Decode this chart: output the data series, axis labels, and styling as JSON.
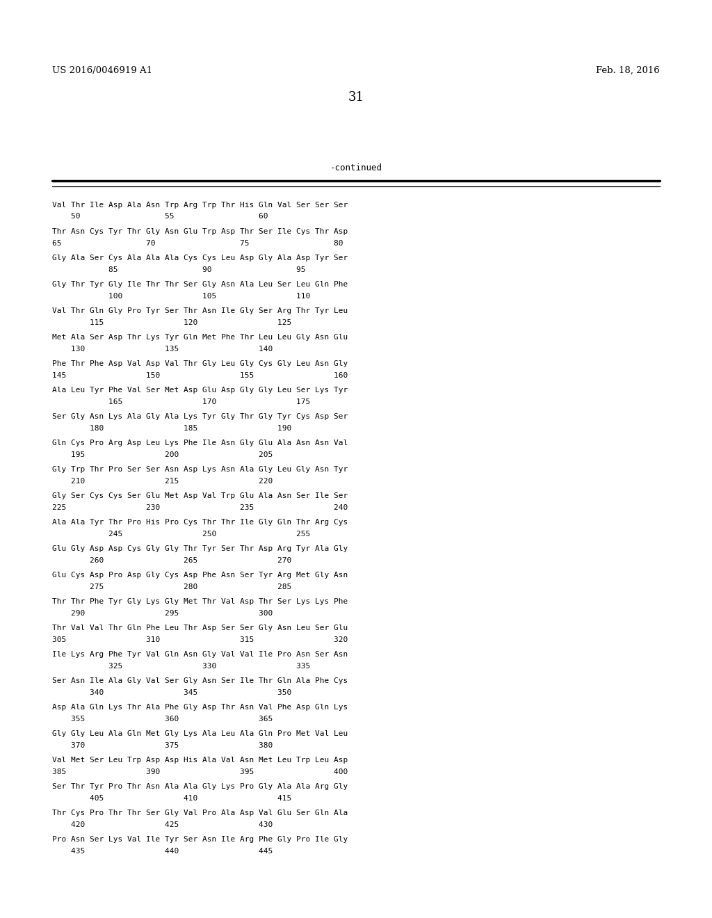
{
  "header_left": "US 2016/0046919 A1",
  "header_right": "Feb. 18, 2016",
  "page_number": "31",
  "continued_label": "-continued",
  "background_color": "#ffffff",
  "text_color": "#000000",
  "sequence_blocks": [
    [
      "Val Thr Ile Asp Ala Asn Trp Arg Trp Thr His Gln Val Ser Ser Ser",
      "    50                  55                  60"
    ],
    [
      "Thr Asn Cys Tyr Thr Gly Asn Glu Trp Asp Thr Ser Ile Cys Thr Asp",
      "65                  70                  75                  80"
    ],
    [
      "Gly Ala Ser Cys Ala Ala Ala Cys Cys Leu Asp Gly Ala Asp Tyr Ser",
      "            85                  90                  95"
    ],
    [
      "Gly Thr Tyr Gly Ile Thr Thr Ser Gly Asn Ala Leu Ser Leu Gln Phe",
      "            100                 105                 110"
    ],
    [
      "Val Thr Gln Gly Pro Tyr Ser Thr Asn Ile Gly Ser Arg Thr Tyr Leu",
      "        115                 120                 125"
    ],
    [
      "Met Ala Ser Asp Thr Lys Tyr Gln Met Phe Thr Leu Leu Gly Asn Glu",
      "    130                 135                 140"
    ],
    [
      "Phe Thr Phe Asp Val Asp Val Thr Gly Leu Gly Cys Gly Leu Asn Gly",
      "145                 150                 155                 160"
    ],
    [
      "Ala Leu Tyr Phe Val Ser Met Asp Glu Asp Gly Gly Leu Ser Lys Tyr",
      "            165                 170                 175"
    ],
    [
      "Ser Gly Asn Lys Ala Gly Ala Lys Tyr Gly Thr Gly Tyr Cys Asp Ser",
      "        180                 185                 190"
    ],
    [
      "Gln Cys Pro Arg Asp Leu Lys Phe Ile Asn Gly Glu Ala Asn Asn Val",
      "    195                 200                 205"
    ],
    [
      "Gly Trp Thr Pro Ser Ser Asn Asp Lys Asn Ala Gly Leu Gly Asn Tyr",
      "    210                 215                 220"
    ],
    [
      "Gly Ser Cys Cys Ser Glu Met Asp Val Trp Glu Ala Asn Ser Ile Ser",
      "225                 230                 235                 240"
    ],
    [
      "Ala Ala Tyr Thr Pro His Pro Cys Thr Thr Ile Gly Gln Thr Arg Cys",
      "            245                 250                 255"
    ],
    [
      "Glu Gly Asp Asp Cys Gly Gly Thr Tyr Ser Thr Asp Arg Tyr Ala Gly",
      "        260                 265                 270"
    ],
    [
      "Glu Cys Asp Pro Asp Gly Cys Asp Phe Asn Ser Tyr Arg Met Gly Asn",
      "        275                 280                 285"
    ],
    [
      "Thr Thr Phe Tyr Gly Lys Gly Met Thr Val Asp Thr Ser Lys Lys Phe",
      "    290                 295                 300"
    ],
    [
      "Thr Val Val Thr Gln Phe Leu Thr Asp Ser Ser Gly Asn Leu Ser Glu",
      "305                 310                 315                 320"
    ],
    [
      "Ile Lys Arg Phe Tyr Val Gln Asn Gly Val Val Ile Pro Asn Ser Asn",
      "            325                 330                 335"
    ],
    [
      "Ser Asn Ile Ala Gly Val Ser Gly Asn Ser Ile Thr Gln Ala Phe Cys",
      "        340                 345                 350"
    ],
    [
      "Asp Ala Gln Lys Thr Ala Phe Gly Asp Thr Asn Val Phe Asp Gln Lys",
      "    355                 360                 365"
    ],
    [
      "Gly Gly Leu Ala Gln Met Gly Lys Ala Leu Ala Gln Pro Met Val Leu",
      "    370                 375                 380"
    ],
    [
      "Val Met Ser Leu Trp Asp Asp His Ala Val Asn Met Leu Trp Leu Asp",
      "385                 390                 395                 400"
    ],
    [
      "Ser Thr Tyr Pro Thr Asn Ala Ala Gly Lys Pro Gly Ala Ala Arg Gly",
      "        405                 410                 415"
    ],
    [
      "Thr Cys Pro Thr Thr Ser Gly Val Pro Ala Asp Val Glu Ser Gln Ala",
      "    420                 425                 430"
    ],
    [
      "Pro Asn Ser Lys Val Ile Tyr Ser Asn Ile Arg Phe Gly Pro Ile Gly",
      "    435                 440                 445"
    ]
  ]
}
